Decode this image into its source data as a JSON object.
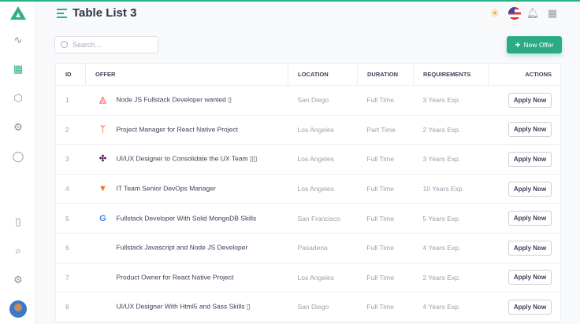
{
  "header": {
    "title": "Table List 3"
  },
  "toolbar": {
    "search_placeholder": "Search...",
    "new_offer_label": "New Offer"
  },
  "colors": {
    "accent": "#2bab85"
  },
  "table": {
    "columns": [
      "ID",
      "OFFER",
      "LOCATION",
      "DURATION",
      "REQUIREMENTS",
      "ACTIONS"
    ],
    "action_label": "Apply Now",
    "rows": [
      {
        "id": "1",
        "logo": "airbnb",
        "offer": "Node JS Fullstack Developer wanted ▯",
        "location": "San Diego",
        "duration": "Full Time",
        "req": "3 Years Exp."
      },
      {
        "id": "2",
        "logo": "hubspot",
        "offer": "Project Manager for React Native Project",
        "location": "Los Angeles",
        "duration": "Part Time",
        "req": "2 Years Exp."
      },
      {
        "id": "3",
        "logo": "slack",
        "offer": "UI/UX Designer to Consolidate the UX Team ▯▯",
        "location": "Los Angeles",
        "duration": "Full Time",
        "req": "3 Years Exp."
      },
      {
        "id": "4",
        "logo": "gitlab",
        "offer": "IT Team Senior DevOps Manager",
        "location": "Los Angeles",
        "duration": "Full Time",
        "req": "10 Years Exp."
      },
      {
        "id": "5",
        "logo": "google",
        "offer": "Fullstack Developer With Solid MongoDB Skills",
        "location": "San Francisco",
        "duration": "Full Time",
        "req": "5 Years Exp."
      },
      {
        "id": "6",
        "logo": "",
        "offer": "Fullstack Javascript and Node JS Developer",
        "location": "Pasadena",
        "duration": "Full Time",
        "req": "4 Years Exp."
      },
      {
        "id": "7",
        "logo": "",
        "offer": "Product Owner for React Native Project",
        "location": "Los Angeles",
        "duration": "Full Time",
        "req": "2 Years Exp."
      },
      {
        "id": "8",
        "logo": "",
        "offer": "UI/UX Designer With Html5 and Sass Skills ▯",
        "location": "San Diego",
        "duration": "Full Time",
        "req": "4 Years Exp."
      }
    ]
  }
}
